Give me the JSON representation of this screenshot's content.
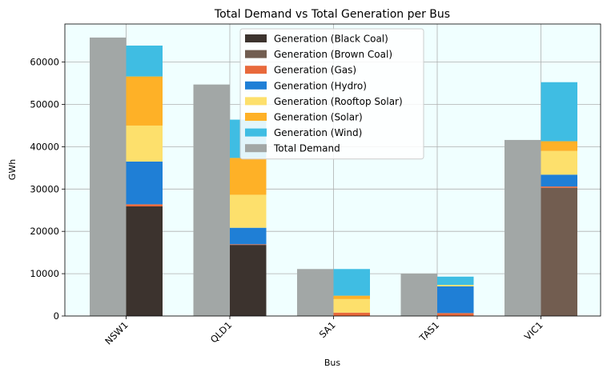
{
  "chart_data": {
    "type": "bar",
    "title": "Total Demand vs Total Generation per Bus",
    "xlabel": "Bus",
    "ylabel": "GWh",
    "ylim": [
      0,
      69000
    ],
    "yticks": [
      0,
      10000,
      20000,
      30000,
      40000,
      50000,
      60000
    ],
    "ytick_labels": [
      "0",
      "10000",
      "20000",
      "30000",
      "40000",
      "50000",
      "60000"
    ],
    "grid": true,
    "legend_position": "upper-center",
    "categories": [
      "NSW1",
      "QLD1",
      "SA1",
      "TAS1",
      "VIC1"
    ],
    "demand": {
      "name": "Total Demand",
      "color": "#a2a7a6",
      "values": [
        65800,
        54700,
        11100,
        10000,
        41600
      ]
    },
    "generation_series": [
      {
        "name": "Generation (Black Coal)",
        "color": "#3c332e",
        "values": [
          25900,
          16800,
          0,
          0,
          0
        ]
      },
      {
        "name": "Generation (Brown Coal)",
        "color": "#725d50",
        "values": [
          0,
          0,
          0,
          0,
          30300
        ]
      },
      {
        "name": "Generation (Gas)",
        "color": "#e8693b",
        "values": [
          500,
          150,
          800,
          700,
          300
        ]
      },
      {
        "name": "Generation (Hydro)",
        "color": "#1f7fd6",
        "values": [
          10100,
          3900,
          0,
          6300,
          2800
        ]
      },
      {
        "name": "Generation (Rooftop Solar)",
        "color": "#fde06c",
        "values": [
          8500,
          7800,
          3200,
          350,
          5600
        ]
      },
      {
        "name": "Generation (Solar)",
        "color": "#feb127",
        "values": [
          11600,
          8700,
          800,
          0,
          2300
        ]
      },
      {
        "name": "Generation (Wind)",
        "color": "#3fbde3",
        "values": [
          7300,
          9050,
          6300,
          1950,
          13950
        ]
      }
    ],
    "plot_background": "#f0ffff"
  }
}
